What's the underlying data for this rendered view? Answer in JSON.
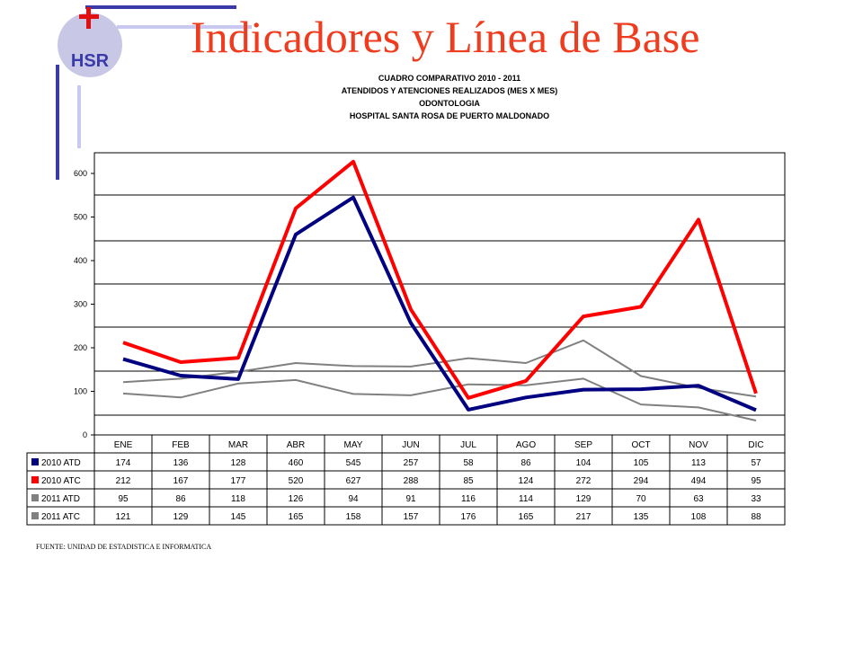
{
  "slide": {
    "title": "Indicadores y Línea de Base",
    "logo_text": "HSR",
    "source": "FUENTE: UNIDAD DE ESTADISTICA E INFORMATICA",
    "colors": {
      "title": "#f03c1e",
      "deco_dark": "#3a3aa8",
      "deco_light": "#c8c8f0",
      "logo_cross": "#e01010"
    }
  },
  "chart_data": {
    "type": "line",
    "title_lines": [
      "CUADRO COMPARATIVO 2010 - 2011",
      "ATENDIDOS Y ATENCIONES  REALIZADOS (MES X MES)",
      "ODONTOLOGIA",
      "HOSPITAL SANTA ROSA DE PUERTO MALDONADO"
    ],
    "categories": [
      "ENE",
      "FEB",
      "MAR",
      "ABR",
      "MAY",
      "JUN",
      "JUL",
      "AGO",
      "SEP",
      "OCT",
      "NOV",
      "DIC"
    ],
    "series": [
      {
        "name": "2010 ATD",
        "color": "#000080",
        "values": [
          174,
          136,
          128,
          460,
          545,
          257,
          58,
          86,
          104,
          105,
          113,
          57
        ]
      },
      {
        "name": "2010 ATC",
        "color": "#ff0000",
        "values": [
          212,
          167,
          177,
          520,
          627,
          288,
          85,
          124,
          272,
          294,
          494,
          95
        ]
      },
      {
        "name": "2011 ATD",
        "color": "#808080",
        "values": [
          95,
          86,
          118,
          126,
          94,
          91,
          116,
          114,
          129,
          70,
          63,
          33
        ]
      },
      {
        "name": "2011 ATC",
        "color": "#808080",
        "values": [
          121,
          129,
          145,
          165,
          158,
          157,
          176,
          165,
          217,
          135,
          108,
          88
        ]
      }
    ],
    "yticks": [
      "0",
      "100",
      "200",
      "300",
      "400",
      "500",
      "600"
    ],
    "ylim": [
      0,
      600
    ],
    "grid": true,
    "legend": "data-table below chart"
  }
}
